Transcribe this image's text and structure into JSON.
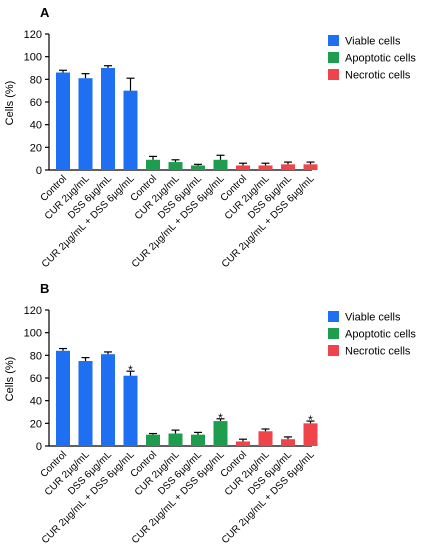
{
  "colors": {
    "viable": "#1f6ff2",
    "apoptotic": "#1e9d4f",
    "necrotic": "#f0444b",
    "axis": "#000000"
  },
  "chart_data": [
    {
      "type": "bar",
      "panel": "A",
      "ylabel": "Cells (%)",
      "ylim": [
        0,
        120
      ],
      "yticks": [
        0,
        20,
        40,
        60,
        80,
        100,
        120
      ],
      "categories": [
        "Control",
        "CUR 2µg/mL",
        "DSS 6µg/mL",
        "CUR 2µg/mL + DSS 6µg/mL"
      ],
      "legend_position": "top-right",
      "series": [
        {
          "name": "Viable cells",
          "color_key": "viable",
          "values": [
            86,
            81,
            90,
            70
          ],
          "errors": [
            2,
            4,
            2,
            11
          ],
          "sig": [
            "",
            "",
            "",
            ""
          ]
        },
        {
          "name": "Apoptotic cells",
          "color_key": "apoptotic",
          "values": [
            9,
            7,
            4,
            9
          ],
          "errors": [
            3,
            2,
            1,
            4
          ],
          "sig": [
            "",
            "",
            "",
            ""
          ]
        },
        {
          "name": "Necrotic cells",
          "color_key": "necrotic",
          "values": [
            4,
            4,
            5,
            5
          ],
          "errors": [
            2,
            2,
            2,
            2
          ],
          "sig": [
            "",
            "",
            "",
            ""
          ]
        }
      ]
    },
    {
      "type": "bar",
      "panel": "B",
      "ylabel": "Cells (%)",
      "ylim": [
        0,
        120
      ],
      "yticks": [
        0,
        20,
        40,
        60,
        80,
        100,
        120
      ],
      "categories": [
        "Control",
        "CUR 2µg/mL",
        "DSS 6µg/mL",
        "CUR 2µg/mL + DSS 6µg/mL"
      ],
      "legend_position": "top-right",
      "series": [
        {
          "name": "Viable cells",
          "color_key": "viable",
          "values": [
            84,
            75,
            81,
            62
          ],
          "errors": [
            2,
            3,
            2,
            4
          ],
          "sig": [
            "",
            "",
            "",
            "*"
          ]
        },
        {
          "name": "Apoptotic cells",
          "color_key": "apoptotic",
          "values": [
            10,
            11,
            10,
            22
          ],
          "errors": [
            1,
            3,
            2,
            2
          ],
          "sig": [
            "",
            "",
            "",
            "*"
          ]
        },
        {
          "name": "Necrotic cells",
          "color_key": "necrotic",
          "values": [
            4,
            13,
            6,
            20
          ],
          "errors": [
            2,
            2,
            2,
            2
          ],
          "sig": [
            "",
            "",
            "",
            "*"
          ]
        }
      ]
    }
  ]
}
